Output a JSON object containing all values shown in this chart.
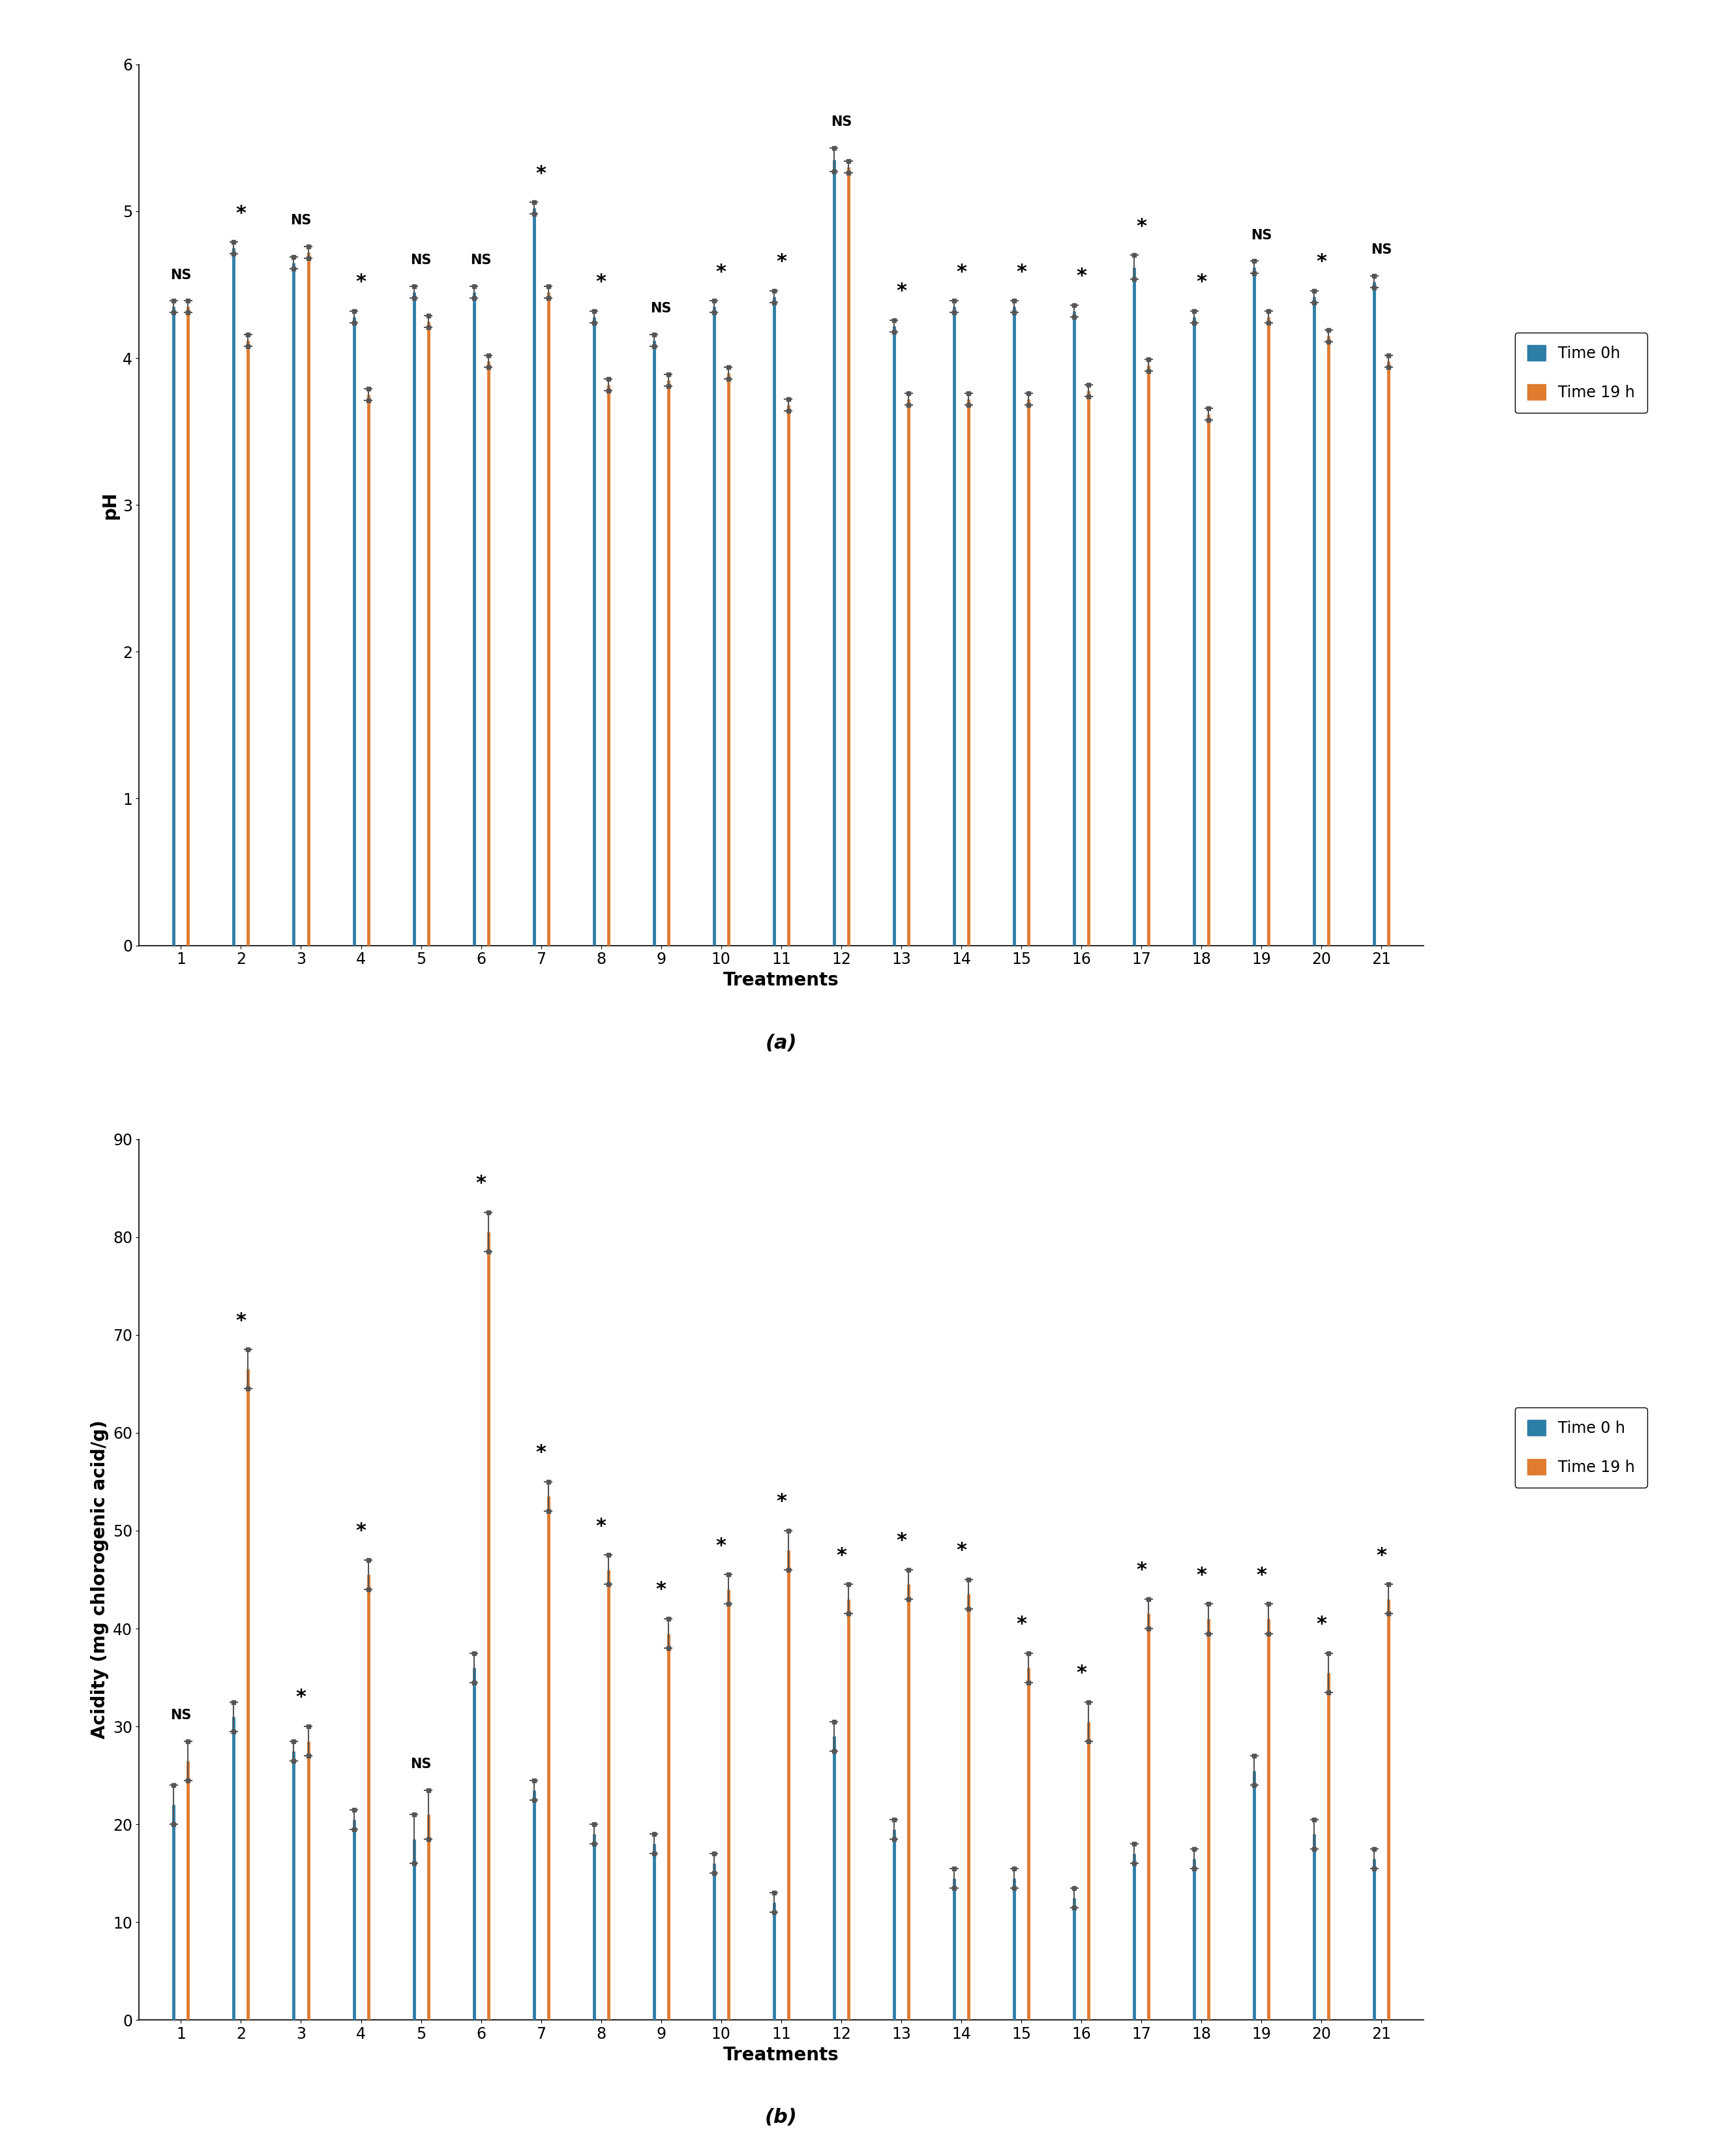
{
  "ph": {
    "time0h": [
      4.35,
      4.75,
      4.65,
      4.28,
      4.45,
      4.45,
      5.02,
      4.28,
      4.12,
      4.35,
      4.42,
      5.35,
      4.22,
      4.35,
      4.35,
      4.32,
      4.62,
      4.28,
      4.62,
      4.42,
      4.52
    ],
    "time19h": [
      4.35,
      4.12,
      4.72,
      3.75,
      4.25,
      3.98,
      4.45,
      3.82,
      3.85,
      3.9,
      3.68,
      5.3,
      3.72,
      3.72,
      3.72,
      3.78,
      3.95,
      3.62,
      4.28,
      4.15,
      3.98
    ],
    "err0h": [
      0.04,
      0.04,
      0.04,
      0.04,
      0.04,
      0.04,
      0.04,
      0.04,
      0.04,
      0.04,
      0.04,
      0.08,
      0.04,
      0.04,
      0.04,
      0.04,
      0.08,
      0.04,
      0.04,
      0.04,
      0.04
    ],
    "err19h": [
      0.04,
      0.04,
      0.04,
      0.04,
      0.04,
      0.04,
      0.04,
      0.04,
      0.04,
      0.04,
      0.04,
      0.04,
      0.04,
      0.04,
      0.04,
      0.04,
      0.04,
      0.04,
      0.04,
      0.04,
      0.04
    ],
    "sig": [
      "NS",
      "*",
      "NS",
      "*",
      "NS",
      "NS",
      "*",
      "*",
      "NS",
      "*",
      "*",
      "NS",
      "*",
      "*",
      "*",
      "*",
      "*",
      "*",
      "NS",
      "*",
      "NS"
    ],
    "ylabel": "pH",
    "ylim": [
      0,
      6
    ],
    "yticks": [
      0,
      1,
      2,
      3,
      4,
      5,
      6
    ],
    "label": "(a)",
    "legend0": "Time 0h",
    "legend19": "Time 19 h"
  },
  "acidity": {
    "time0h": [
      22.0,
      31.0,
      27.5,
      20.5,
      18.5,
      36.0,
      23.5,
      19.0,
      18.0,
      16.0,
      12.0,
      29.0,
      19.5,
      14.5,
      14.5,
      12.5,
      17.0,
      16.5,
      25.5,
      19.0,
      16.5
    ],
    "time19h": [
      26.5,
      66.5,
      28.5,
      45.5,
      21.0,
      80.5,
      53.5,
      46.0,
      39.5,
      44.0,
      48.0,
      43.0,
      44.5,
      43.5,
      36.0,
      30.5,
      41.5,
      41.0,
      41.0,
      35.5,
      43.0
    ],
    "err0h": [
      2.0,
      1.5,
      1.0,
      1.0,
      2.5,
      1.5,
      1.0,
      1.0,
      1.0,
      1.0,
      1.0,
      1.5,
      1.0,
      1.0,
      1.0,
      1.0,
      1.0,
      1.0,
      1.5,
      1.5,
      1.0
    ],
    "err19h": [
      2.0,
      2.0,
      1.5,
      1.5,
      2.5,
      2.0,
      1.5,
      1.5,
      1.5,
      1.5,
      2.0,
      1.5,
      1.5,
      1.5,
      1.5,
      2.0,
      1.5,
      1.5,
      1.5,
      2.0,
      1.5
    ],
    "sig": [
      "NS",
      "*",
      "*",
      "*",
      "NS",
      "*",
      "*",
      "*",
      "*",
      "*",
      "*",
      "*",
      "*",
      "*",
      "*",
      "*",
      "*",
      "*",
      "*",
      "*",
      "*"
    ],
    "ylabel": "Acidity (mg chlorogenic acid/g)",
    "ylim": [
      0,
      90
    ],
    "yticks": [
      0,
      10,
      20,
      30,
      40,
      50,
      60,
      70,
      80,
      90
    ],
    "label": "(b)",
    "legend0": "Time 0 h",
    "legend19": "Time 19 h"
  },
  "color_0h": "#2e7fa8",
  "color_19h": "#e07b30",
  "line_width": 3.5,
  "treatments": [
    1,
    2,
    3,
    4,
    5,
    6,
    7,
    8,
    9,
    10,
    11,
    12,
    13,
    14,
    15,
    16,
    17,
    18,
    19,
    20,
    21
  ],
  "xlabel": "Treatments"
}
